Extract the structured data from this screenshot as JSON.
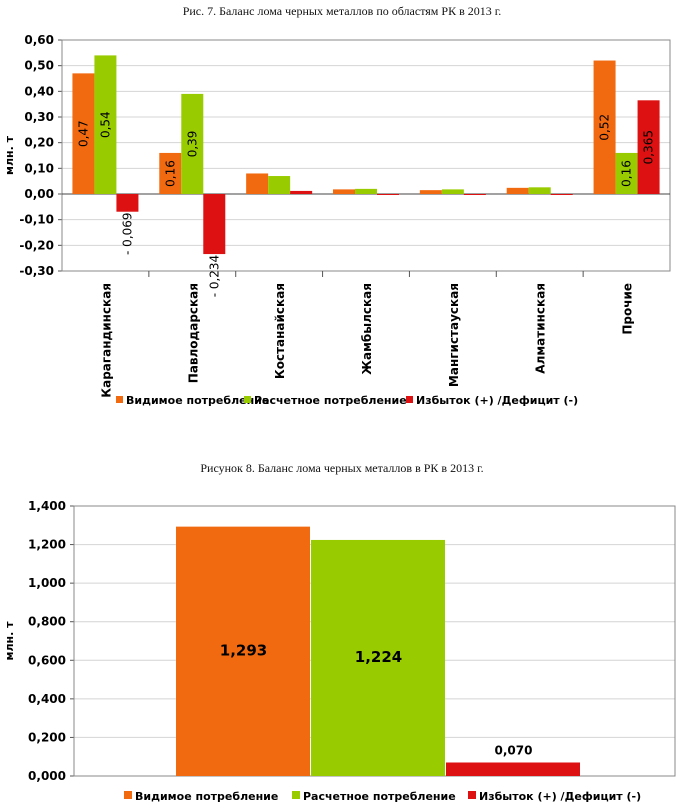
{
  "captions": {
    "fig7": "Рис. 7. Баланс лома черных металлов по областям РК в 2013 г.",
    "fig8": "Рисунок 8. Баланс лома черных металлов в РК в 2013 г."
  },
  "colors": {
    "orange": "#f26a10",
    "green": "#99cc00",
    "red": "#dd1111",
    "grid": "#d4d4d4"
  },
  "chart_data": [
    {
      "type": "bar",
      "title": "Рис. 7. Баланс лома черных металлов по областям РК в 2013 г.",
      "ylabel": "млн. т",
      "xlabel": "",
      "ylim": [
        -0.3,
        0.6
      ],
      "yticks": [
        "-0,30",
        "-0,20",
        "-0,10",
        "0,00",
        "0,10",
        "0,20",
        "0,30",
        "0,40",
        "0,50",
        "0,60"
      ],
      "categories": [
        "Карагандинская",
        "Павлодарская",
        "Костанайская",
        "Жамбылская",
        "Мангистауская",
        "Алматинская",
        "Прочие"
      ],
      "series": [
        {
          "name": "Видимое потребление",
          "values": [
            0.47,
            0.16,
            0.08,
            0.018,
            0.015,
            0.024,
            0.52
          ],
          "labels": [
            "0,47",
            "0,16",
            "",
            "",
            "",
            "",
            "0,52"
          ]
        },
        {
          "name": "Расчетное потребление",
          "values": [
            0.54,
            0.39,
            0.07,
            0.02,
            0.018,
            0.026,
            0.16
          ],
          "labels": [
            "0,54",
            "0,39",
            "",
            "",
            "",
            "",
            "0,16"
          ]
        },
        {
          "name": "Избыток (+) /Дефицит (-)",
          "values": [
            -0.069,
            -0.234,
            0.012,
            -0.002,
            -0.003,
            -0.002,
            0.365
          ],
          "labels": [
            "- 0,069",
            "- 0,234",
            "",
            "",
            "",
            "",
            "0,365"
          ]
        }
      ],
      "legend": [
        "Видимое потребление",
        "Расчетное потребление",
        "Избыток (+) /Дефицит (-)"
      ],
      "legend_position": "bottom"
    },
    {
      "type": "bar",
      "title": "Рисунок 8. Баланс лома черных металлов в РК в 2013 г.",
      "ylabel": "млн. т",
      "xlabel": "",
      "ylim": [
        0,
        1.4
      ],
      "yticks": [
        "0,000",
        "0,200",
        "0,400",
        "0,600",
        "0,800",
        "1,000",
        "1,200",
        "1,400"
      ],
      "series": [
        {
          "name": "Видимое потребление",
          "value": 1.293,
          "label": "1,293"
        },
        {
          "name": "Расчетное потребление",
          "value": 1.224,
          "label": "1,224"
        },
        {
          "name": "Избыток (+) /Дефицит (-)",
          "value": 0.07,
          "label": "0,070"
        }
      ],
      "legend": [
        "Видимое потребление",
        "Расчетное потребление",
        "Избыток (+) /Дефицит (-)"
      ],
      "legend_position": "bottom"
    }
  ]
}
